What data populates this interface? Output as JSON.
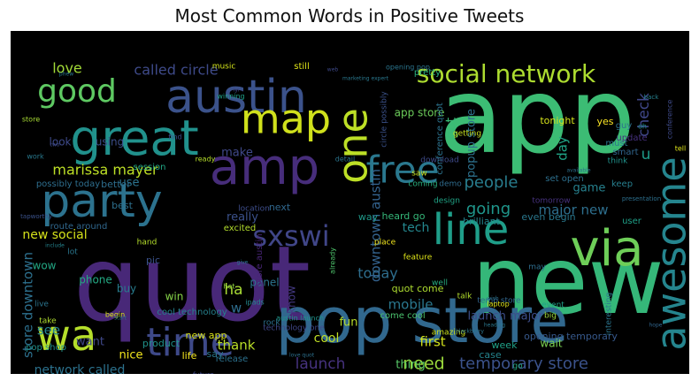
{
  "chart_data": {
    "type": "wordcloud",
    "title": "Most Common Words in Positive Tweets",
    "background": "#000000",
    "colormap": "viridis",
    "words": [
      {
        "text": "app",
        "weight": 1.0,
        "color": "#3cbc74"
      },
      {
        "text": "quot",
        "weight": 0.98,
        "color": "#482878"
      },
      {
        "text": "new",
        "weight": 0.78,
        "color": "#35b779"
      },
      {
        "text": "pop store",
        "weight": 0.62,
        "color": "#31688e"
      },
      {
        "text": "austin",
        "weight": 0.55,
        "color": "#3b528b"
      },
      {
        "text": "great",
        "weight": 0.55,
        "color": "#21918c"
      },
      {
        "text": "party",
        "weight": 0.48,
        "color": "#2c728e"
      },
      {
        "text": "amp",
        "weight": 0.5,
        "color": "#472d7b"
      },
      {
        "text": "line",
        "weight": 0.42,
        "color": "#1f9e89"
      },
      {
        "text": "via",
        "weight": 0.45,
        "color": "#6ece58"
      },
      {
        "text": "awesome",
        "weight": 0.42,
        "color": "#25858e"
      },
      {
        "text": "wa",
        "weight": 0.42,
        "color": "#b5de2b"
      },
      {
        "text": "time",
        "weight": 0.4,
        "color": "#3e4989"
      },
      {
        "text": "map",
        "weight": 0.38,
        "color": "#d0e11c"
      },
      {
        "text": "one",
        "weight": 0.38,
        "color": "#bddf26"
      },
      {
        "text": "free",
        "weight": 0.36,
        "color": "#2a788e"
      },
      {
        "text": "social network",
        "weight": 0.26,
        "color": "#addc30"
      },
      {
        "text": "good",
        "weight": 0.3,
        "color": "#5ec962"
      },
      {
        "text": "sxswi",
        "weight": 0.28,
        "color": "#404688"
      },
      {
        "text": "store downtown",
        "weight": 0.14,
        "color": "#2d708e"
      },
      {
        "text": "need",
        "weight": 0.18,
        "color": "#9bd93c"
      },
      {
        "text": "temporary store",
        "weight": 0.15,
        "color": "#3b528b"
      },
      {
        "text": "marissa mayer",
        "weight": 0.15,
        "color": "#bddf26"
      },
      {
        "text": "people",
        "weight": 0.16,
        "color": "#287d8e"
      },
      {
        "text": "going",
        "weight": 0.16,
        "color": "#1f968b"
      },
      {
        "text": "called circle",
        "weight": 0.13,
        "color": "#3e4a89"
      },
      {
        "text": "love",
        "weight": 0.13,
        "color": "#a2da37"
      },
      {
        "text": "check",
        "weight": 0.14,
        "color": "#3f4788"
      },
      {
        "text": "launch",
        "weight": 0.14,
        "color": "#46327e"
      },
      {
        "text": "ha",
        "weight": 0.14,
        "color": "#a8db34"
      },
      {
        "text": "today",
        "weight": 0.13,
        "color": "#2e6e8e"
      },
      {
        "text": "network called",
        "weight": 0.11,
        "color": "#2c728e"
      },
      {
        "text": "thank",
        "weight": 0.12,
        "color": "#bade28"
      },
      {
        "text": "cool",
        "weight": 0.11,
        "color": "#c0df25"
      },
      {
        "text": "first",
        "weight": 0.11,
        "color": "#d2e21b"
      },
      {
        "text": "major new",
        "weight": 0.11,
        "color": "#2e6f8e"
      },
      {
        "text": "downtown austin",
        "weight": 0.11,
        "color": "#33628d"
      },
      {
        "text": "launch major",
        "weight": 0.11,
        "color": "#3d4e8a"
      },
      {
        "text": "day",
        "weight": 0.11,
        "color": "#20a486"
      },
      {
        "text": "got",
        "weight": 0.11,
        "color": "#3aba76"
      },
      {
        "text": "popup store",
        "weight": 0.1,
        "color": "#2d718e"
      },
      {
        "text": "game",
        "weight": 0.09,
        "color": "#26818e"
      },
      {
        "text": "mobile",
        "weight": 0.09,
        "color": "#2a778e"
      },
      {
        "text": "tech",
        "weight": 0.09,
        "color": "#24878e"
      },
      {
        "text": "see",
        "weight": 0.1,
        "color": "#25838e"
      },
      {
        "text": "u",
        "weight": 0.12,
        "color": "#1e9c89"
      },
      {
        "text": "make",
        "weight": 0.09,
        "color": "#3f4889"
      },
      {
        "text": "really",
        "weight": 0.09,
        "color": "#3b518b"
      },
      {
        "text": "new social",
        "weight": 0.09,
        "color": "#d5e21a"
      },
      {
        "text": "use",
        "weight": 0.09,
        "color": "#2c738e"
      },
      {
        "text": "look",
        "weight": 0.08,
        "color": "#3e4a89"
      },
      {
        "text": "using",
        "weight": 0.08,
        "color": "#3c4f8a"
      },
      {
        "text": "want",
        "weight": 0.08,
        "color": "#3f4889"
      },
      {
        "text": "thing",
        "weight": 0.08,
        "color": "#56c667"
      },
      {
        "text": "fun",
        "weight": 0.08,
        "color": "#b8de29"
      },
      {
        "text": "wow",
        "weight": 0.07,
        "color": "#22a884"
      },
      {
        "text": "phone",
        "weight": 0.07,
        "color": "#24aa83"
      },
      {
        "text": "nice",
        "weight": 0.07,
        "color": "#f1e51d"
      },
      {
        "text": "buy",
        "weight": 0.07,
        "color": "#287c8e"
      },
      {
        "text": "panel",
        "weight": 0.07,
        "color": "#2c738e"
      },
      {
        "text": "w",
        "weight": 0.09,
        "color": "#2e6d8e"
      },
      {
        "text": "know",
        "weight": 0.07,
        "color": "#443983"
      },
      {
        "text": "pic",
        "weight": 0.06,
        "color": "#3b528b"
      },
      {
        "text": "win",
        "weight": 0.06,
        "color": "#86d549"
      },
      {
        "text": "life",
        "weight": 0.06,
        "color": "#f4e61e"
      },
      {
        "text": "say",
        "weight": 0.06,
        "color": "#2a768e"
      },
      {
        "text": "product",
        "weight": 0.06,
        "color": "#20928c"
      },
      {
        "text": "new app",
        "weight": 0.06,
        "color": "#d8e219"
      },
      {
        "text": "release",
        "weight": 0.06,
        "color": "#2c718e"
      },
      {
        "text": "opening temporary",
        "weight": 0.06,
        "color": "#37598c"
      },
      {
        "text": "wait",
        "weight": 0.07,
        "color": "#7ad151"
      },
      {
        "text": "week",
        "weight": 0.06,
        "color": "#1fa187"
      },
      {
        "text": "case",
        "weight": 0.06,
        "color": "#25848e"
      },
      {
        "text": "quot come",
        "weight": 0.06,
        "color": "#addc30"
      },
      {
        "text": "come cool",
        "weight": 0.06,
        "color": "#4ac16d"
      },
      {
        "text": "heard go",
        "weight": 0.06,
        "color": "#35b779"
      },
      {
        "text": "even begin",
        "weight": 0.06,
        "color": "#2a788e"
      },
      {
        "text": "set open",
        "weight": 0.06,
        "color": "#2d708e"
      },
      {
        "text": "app store",
        "weight": 0.06,
        "color": "#6ccd5a"
      },
      {
        "text": "brilliant",
        "weight": 0.06,
        "color": "#24868e"
      },
      {
        "text": "way",
        "weight": 0.06,
        "color": "#1f9a8a"
      },
      {
        "text": "best",
        "weight": 0.05,
        "color": "#2d708e"
      },
      {
        "text": "better",
        "weight": 0.05,
        "color": "#2e6e8e"
      },
      {
        "text": "next",
        "weight": 0.05,
        "color": "#30678d"
      },
      {
        "text": "excited",
        "weight": 0.05,
        "color": "#b2dd2d"
      },
      {
        "text": "session",
        "weight": 0.05,
        "color": "#21a685"
      },
      {
        "text": "pretty",
        "weight": 0.05,
        "color": "#29af7f"
      },
      {
        "text": "tonight",
        "weight": 0.05,
        "color": "#d5e21a"
      },
      {
        "text": "yes",
        "weight": 0.05,
        "color": "#fde725"
      },
      {
        "text": "smart",
        "weight": 0.05,
        "color": "#31668e"
      },
      {
        "text": "must",
        "weight": 0.05,
        "color": "#2a778e"
      },
      {
        "text": "guy",
        "weight": 0.05,
        "color": "#2c718e"
      },
      {
        "text": "update",
        "weight": 0.05,
        "color": "#46307e"
      },
      {
        "text": "keep",
        "weight": 0.05,
        "color": "#277f8e"
      },
      {
        "text": "user",
        "weight": 0.05,
        "color": "#1fa088"
      },
      {
        "text": "music",
        "weight": 0.04,
        "color": "#d2e21b"
      },
      {
        "text": "still",
        "weight": 0.04,
        "color": "#dfe318"
      },
      {
        "text": "getting",
        "weight": 0.04,
        "color": "#c5e021"
      },
      {
        "text": "download",
        "weight": 0.04,
        "color": "#3e4a89"
      },
      {
        "text": "saw",
        "weight": 0.04,
        "color": "#cae11f"
      },
      {
        "text": "tomorrow",
        "weight": 0.04,
        "color": "#46327e"
      },
      {
        "text": "coming",
        "weight": 0.04,
        "color": "#29af7f"
      },
      {
        "text": "demo",
        "weight": 0.04,
        "color": "#2f6c8e"
      },
      {
        "text": "location",
        "weight": 0.04,
        "color": "#3d4d8a"
      },
      {
        "text": "design",
        "weight": 0.04,
        "color": "#20a486"
      },
      {
        "text": "feature",
        "weight": 0.04,
        "color": "#dde318"
      },
      {
        "text": "place",
        "weight": 0.04,
        "color": "#f1e51d"
      },
      {
        "text": "think",
        "weight": 0.04,
        "color": "#20928c"
      },
      {
        "text": "talk",
        "weight": 0.04,
        "color": "#b2dd2d"
      },
      {
        "text": "may",
        "weight": 0.04,
        "color": "#2e6d8e"
      },
      {
        "text": "event",
        "weight": 0.04,
        "color": "#1fa088"
      },
      {
        "text": "big",
        "weight": 0.04,
        "color": "#9dd93b"
      },
      {
        "text": "interesting",
        "weight": 0.04,
        "color": "#2b758e"
      },
      {
        "text": "right",
        "weight": 0.04,
        "color": "#3b528b"
      },
      {
        "text": "go",
        "weight": 0.04,
        "color": "#27ad81"
      },
      {
        "text": "sell",
        "weight": 0.04,
        "color": "#2f6b8e"
      },
      {
        "text": "amazing",
        "weight": 0.04,
        "color": "#c8e020"
      },
      {
        "text": "well",
        "weight": 0.04,
        "color": "#26ad81"
      },
      {
        "text": "hot",
        "weight": 0.04,
        "color": "#93d741"
      },
      {
        "text": "hand",
        "weight": 0.04,
        "color": "#b5de2b"
      },
      {
        "text": "lot",
        "weight": 0.04,
        "color": "#2a768e"
      },
      {
        "text": "live",
        "weight": 0.04,
        "color": "#2b748e"
      },
      {
        "text": "take",
        "weight": 0.04,
        "color": "#b0dd2f"
      },
      {
        "text": "work",
        "weight": 0.03,
        "color": "#29798e"
      },
      {
        "text": "store",
        "weight": 0.03,
        "color": "#a8db34"
      },
      {
        "text": "find",
        "weight": 0.03,
        "color": "#3c4f8a"
      },
      {
        "text": "ready",
        "weight": 0.03,
        "color": "#b5de2b"
      },
      {
        "text": "already",
        "weight": 0.03,
        "color": "#4ec36b"
      },
      {
        "text": "future",
        "weight": 0.03,
        "color": "#3f4889"
      },
      {
        "text": "everyone",
        "weight": 0.03,
        "color": "#2e6e8e"
      },
      {
        "text": "begin",
        "weight": 0.03,
        "color": "#d8e219"
      },
      {
        "text": "ipads",
        "weight": 0.03,
        "color": "#24878e"
      },
      {
        "text": "oh",
        "weight": 0.03,
        "color": "#21918c"
      },
      {
        "text": "tell",
        "weight": 0.03,
        "color": "#dde318"
      },
      {
        "text": "pop shop",
        "weight": 0.05,
        "color": "#21918c"
      },
      {
        "text": "possibly today",
        "weight": 0.05,
        "color": "#2e6e8e"
      },
      {
        "text": "route around",
        "weight": 0.04,
        "color": "#30678d"
      },
      {
        "text": "cool technology",
        "weight": 0.04,
        "color": "#26818e"
      },
      {
        "text": "store austin",
        "weight": 0.04,
        "color": "#482576"
      },
      {
        "text": "technology one",
        "weight": 0.04,
        "color": "#3f4788"
      },
      {
        "text": "circle possibly",
        "weight": 0.04,
        "color": "#3b528b"
      },
      {
        "text": "conference quot",
        "weight": 0.04,
        "color": "#2c738e"
      },
      {
        "text": "temp store",
        "weight": 0.04,
        "color": "#31668e"
      },
      {
        "text": "laptop",
        "weight": 0.04,
        "color": "#dfe318"
      },
      {
        "text": "rock",
        "weight": 0.04,
        "color": "#2c728e"
      },
      {
        "text": "detail",
        "weight": 0.03,
        "color": "#2b758e"
      },
      {
        "text": "winning",
        "weight": 0.03,
        "color": "#1fa088"
      },
      {
        "text": "conference",
        "weight": 0.03,
        "color": "#3e4a89"
      },
      {
        "text": "austin launch",
        "weight": 0.03,
        "color": "#1f968b"
      },
      {
        "text": "opening pop",
        "weight": 0.03,
        "color": "#2b758e"
      },
      {
        "text": "marketing expert",
        "weight": 0.02,
        "color": "#2a788e"
      },
      {
        "text": "web",
        "weight": 0.02,
        "color": "#3e4989"
      },
      {
        "text": "back",
        "weight": 0.02,
        "color": "#26818e"
      },
      {
        "text": "presentation",
        "weight": 0.02,
        "color": "#2d708e"
      },
      {
        "text": "available",
        "weight": 0.02,
        "color": "#2c718e"
      },
      {
        "text": "include",
        "weight": 0.02,
        "color": "#25838e"
      },
      {
        "text": "tapworthy",
        "weight": 0.02,
        "color": "#3b528b"
      },
      {
        "text": "blackberry",
        "weight": 0.02,
        "color": "#2b758e"
      },
      {
        "text": "wish",
        "weight": 0.02,
        "color": "#2c728e"
      },
      {
        "text": "start",
        "weight": 0.02,
        "color": "#2c718e"
      },
      {
        "text": "give",
        "weight": 0.02,
        "color": "#2c728e"
      },
      {
        "text": "two",
        "weight": 0.02,
        "color": "#3e4a89"
      },
      {
        "text": "fyi",
        "weight": 0.02,
        "color": "#3f4788"
      },
      {
        "text": "phew",
        "weight": 0.02,
        "color": "#2a788e"
      },
      {
        "text": "love quot",
        "weight": 0.02,
        "color": "#2d708e"
      },
      {
        "text": "hope",
        "weight": 0.02,
        "color": "#31668e"
      },
      {
        "text": "heading",
        "weight": 0.02,
        "color": "#2a788e"
      }
    ]
  }
}
